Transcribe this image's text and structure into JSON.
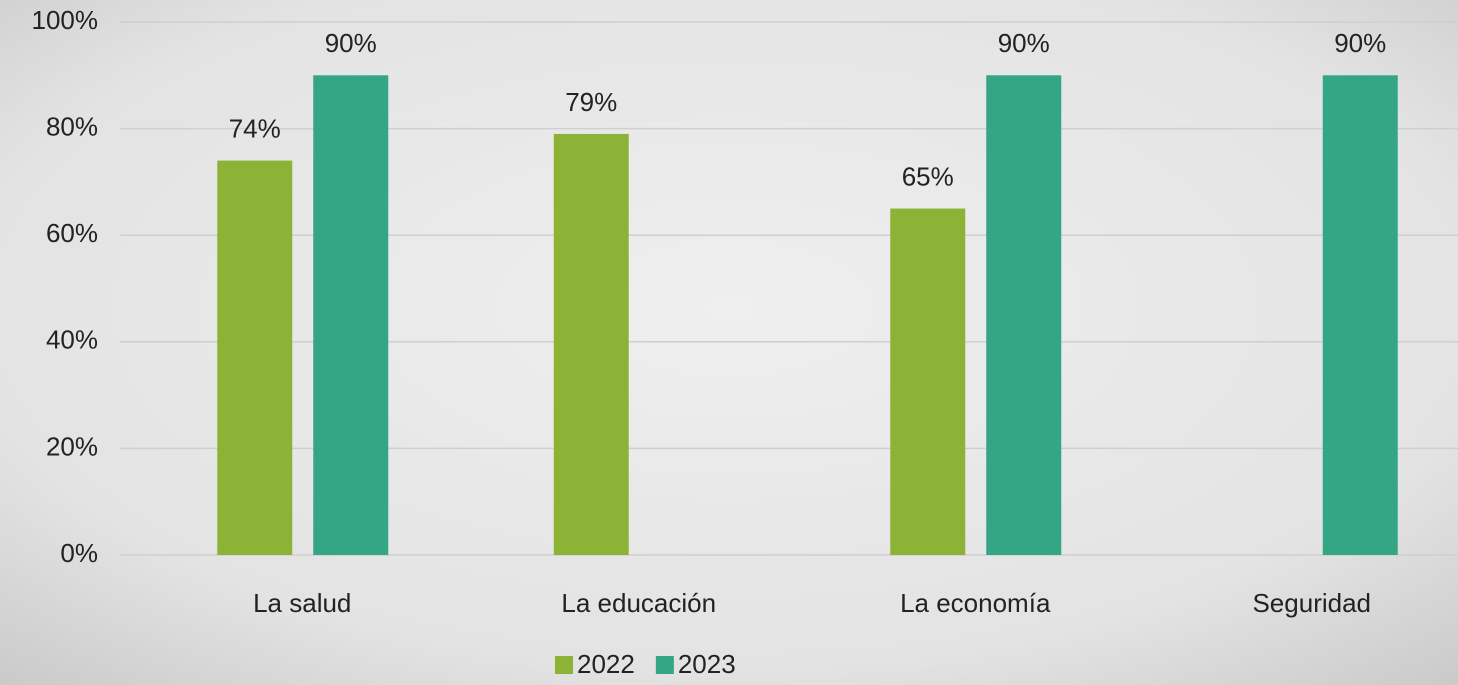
{
  "chart_data": {
    "type": "bar",
    "categories": [
      "La salud",
      "La educación",
      "La economía",
      "Seguridad"
    ],
    "series": [
      {
        "name": "2022",
        "color": "#8db336",
        "values": [
          74,
          79,
          65,
          null
        ],
        "value_labels": [
          "74%",
          "79%",
          "65%",
          null
        ]
      },
      {
        "name": "2023",
        "color": "#34a585",
        "values": [
          90,
          null,
          90,
          90
        ],
        "value_labels": [
          "90%",
          null,
          "90%",
          "90%"
        ]
      }
    ],
    "ylim": [
      0,
      100
    ],
    "yticks": [
      {
        "value": 0,
        "label": "0%"
      },
      {
        "value": 20,
        "label": "20%"
      },
      {
        "value": 40,
        "label": "40%"
      },
      {
        "value": 60,
        "label": "60%"
      },
      {
        "value": 80,
        "label": "80%"
      },
      {
        "value": 100,
        "label": "100%"
      }
    ],
    "grid": true,
    "legend": "bottom"
  }
}
